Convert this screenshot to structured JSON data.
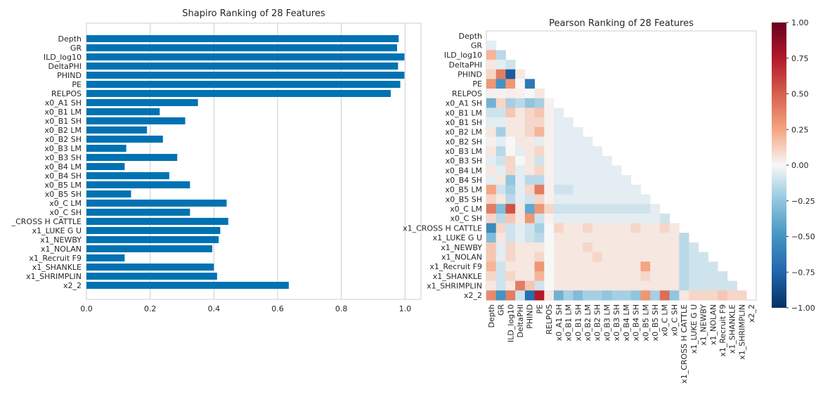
{
  "chart_data": [
    {
      "type": "bar",
      "orientation": "horizontal",
      "title": "Shapiro Ranking of 28 Features",
      "categories": [
        "Depth",
        "GR",
        "ILD_log10",
        "DeltaPHI",
        "PHIND",
        "PE",
        "RELPOS",
        "x0_A1 SH",
        "x0_B1 LM",
        "x0_B1 SH",
        "x0_B2 LM",
        "x0_B2 SH",
        "x0_B3 LM",
        "x0_B3 SH",
        "x0_B4 LM",
        "x0_B4 SH",
        "x0_B5 LM",
        "x0_B5 SH",
        "x0_C LM",
        "x0_C SH",
        "x1_CROSS H CATTLE",
        "x1_LUKE G U",
        "x1_NEWBY",
        "x1_NOLAN",
        "x1_Recruit F9",
        "x1_SHANKLE",
        "x1_SHRIMPLIN",
        "x2_2"
      ],
      "category_labels_shown": [
        "Depth",
        "GR",
        "ILD_log10",
        "DeltaPHI",
        "PHIND",
        "PE",
        "RELPOS",
        "x0_A1 SH",
        "x0_B1 LM",
        "x0_B1 SH",
        "x0_B2 LM",
        "x0_B2 SH",
        "x0_B3 LM",
        "x0_B3 SH",
        "x0_B4 LM",
        "x0_B4 SH",
        "x0_B5 LM",
        "x0_B5 SH",
        "x0_C LM",
        "x0_C SH",
        "_CROSS H CATTLE",
        "x1_LUKE G U",
        "x1_NEWBY",
        "x1_NOLAN",
        "x1_Recruit F9",
        "x1_SHANKLE",
        "x1_SHRIMPLIN",
        "x2_2"
      ],
      "values": [
        0.98,
        0.975,
        0.998,
        0.978,
        0.998,
        0.985,
        0.955,
        0.35,
        0.23,
        0.31,
        0.19,
        0.24,
        0.125,
        0.285,
        0.12,
        0.26,
        0.325,
        0.14,
        0.44,
        0.325,
        0.445,
        0.42,
        0.415,
        0.395,
        0.12,
        0.4,
        0.41,
        0.635
      ],
      "xlim": [
        0,
        1.05
      ],
      "xticks": [
        "0.0",
        "0.2",
        "0.4",
        "0.6",
        "0.8",
        "1.0"
      ],
      "bar_color": "#0072b2",
      "grid": true
    },
    {
      "type": "heatmap",
      "title": "Pearson Ranking of 28 Features",
      "features": [
        "Depth",
        "GR",
        "ILD_log10",
        "DeltaPHI",
        "PHIND",
        "PE",
        "RELPOS",
        "x0_A1 SH",
        "x0_B1 LM",
        "x0_B1 SH",
        "x0_B2 LM",
        "x0_B2 SH",
        "x0_B3 LM",
        "x0_B3 SH",
        "x0_B4 LM",
        "x0_B4 SH",
        "x0_B5 LM",
        "x0_B5 SH",
        "x0_C LM",
        "x0_C SH",
        "x1_CROSS H CATTLE",
        "x1_LUKE G U",
        "x1_NEWBY",
        "x1_NOLAN",
        "x1_Recruit F9",
        "x1_SHANKLE",
        "x1_SHRIMPLIN",
        "x2_2"
      ],
      "lower_triangle": true,
      "colormap": "RdBu_r",
      "vmin": -1.0,
      "vmax": 1.0,
      "colorbar_ticks": [
        "1.00",
        "0.75",
        "0.50",
        "0.25",
        "0.00",
        "−0.25",
        "−0.50",
        "−0.75",
        "−1.00"
      ],
      "matrix_rows": [
        [],
        [
          -0.05
        ],
        [
          0.2,
          -0.15
        ],
        [
          0.05,
          -0.05,
          -0.1
        ],
        [
          0.1,
          0.4,
          -0.8,
          0.05
        ],
        [
          0.3,
          -0.5,
          0.3,
          0.0,
          -0.65
        ],
        [
          0.02,
          0.02,
          0.03,
          0.02,
          0.0,
          0.05
        ],
        [
          -0.35,
          0.1,
          -0.2,
          -0.15,
          -0.25,
          -0.2,
          0.02
        ],
        [
          -0.1,
          -0.1,
          0.15,
          0.05,
          0.1,
          0.15,
          0.02,
          -0.05
        ],
        [
          -0.05,
          -0.05,
          0.05,
          0.05,
          0.1,
          0.1,
          0.02,
          -0.05,
          -0.05
        ],
        [
          0.05,
          -0.2,
          0.05,
          0.05,
          0.1,
          0.2,
          0.02,
          -0.05,
          -0.05,
          -0.05
        ],
        [
          0.02,
          -0.05,
          0.0,
          0.05,
          0.05,
          -0.05,
          0.02,
          -0.05,
          -0.05,
          -0.05,
          -0.05
        ],
        [
          0.05,
          -0.15,
          0.0,
          -0.05,
          0.05,
          0.1,
          0.02,
          -0.05,
          -0.05,
          -0.05,
          -0.05,
          -0.05
        ],
        [
          -0.05,
          -0.1,
          0.1,
          0.0,
          0.05,
          -0.1,
          0.02,
          -0.05,
          -0.05,
          -0.05,
          -0.05,
          -0.05,
          -0.05
        ],
        [
          0.05,
          -0.05,
          0.1,
          -0.05,
          0.05,
          0.1,
          0.02,
          -0.05,
          -0.05,
          -0.05,
          -0.05,
          -0.05,
          -0.05,
          -0.05
        ],
        [
          -0.05,
          0.05,
          -0.25,
          -0.05,
          -0.15,
          -0.15,
          0.02,
          -0.05,
          -0.05,
          -0.05,
          -0.05,
          -0.05,
          -0.05,
          -0.05,
          -0.05
        ],
        [
          0.25,
          -0.1,
          -0.2,
          -0.05,
          0.1,
          0.4,
          0.02,
          -0.1,
          -0.1,
          -0.05,
          -0.05,
          -0.05,
          -0.05,
          -0.05,
          -0.05,
          -0.05
        ],
        [
          0.1,
          0.05,
          -0.15,
          -0.05,
          -0.1,
          0.1,
          0.02,
          -0.05,
          -0.05,
          -0.05,
          -0.05,
          -0.05,
          -0.05,
          -0.05,
          -0.05,
          -0.05,
          -0.05
        ],
        [
          0.4,
          -0.3,
          0.55,
          0.05,
          -0.4,
          0.3,
          0.1,
          -0.1,
          -0.1,
          -0.1,
          -0.1,
          -0.1,
          -0.1,
          -0.1,
          -0.1,
          -0.1,
          -0.1,
          -0.05
        ],
        [
          0.1,
          -0.15,
          0.15,
          0.05,
          0.3,
          -0.1,
          0.02,
          -0.05,
          -0.05,
          -0.05,
          -0.05,
          -0.05,
          -0.05,
          -0.05,
          -0.05,
          -0.05,
          -0.05,
          -0.05,
          -0.1
        ],
        [
          -0.55,
          0.1,
          -0.1,
          -0.05,
          -0.1,
          -0.2,
          0.0,
          0.1,
          0.05,
          0.05,
          0.1,
          0.05,
          0.05,
          0.05,
          0.05,
          0.1,
          0.05,
          0.05,
          0.1,
          0.05
        ],
        [
          -0.3,
          0.05,
          -0.1,
          -0.05,
          -0.1,
          -0.15,
          0.0,
          0.05,
          0.05,
          0.05,
          0.05,
          0.05,
          0.05,
          0.05,
          0.05,
          0.05,
          0.05,
          0.05,
          0.05,
          0.05,
          -0.15
        ],
        [
          0.15,
          -0.05,
          0.1,
          0.05,
          0.05,
          0.05,
          0.0,
          0.05,
          0.05,
          0.05,
          0.1,
          0.05,
          0.05,
          0.05,
          0.05,
          0.05,
          0.05,
          0.05,
          0.05,
          0.05,
          -0.15,
          -0.1
        ],
        [
          0.15,
          -0.05,
          0.1,
          0.05,
          0.05,
          0.1,
          0.0,
          0.05,
          0.05,
          0.05,
          0.05,
          0.1,
          0.05,
          0.05,
          0.05,
          0.05,
          0.05,
          0.05,
          0.05,
          0.05,
          -0.15,
          -0.1,
          -0.1
        ],
        [
          0.2,
          -0.1,
          0.05,
          0.05,
          0.05,
          0.3,
          0.0,
          0.05,
          0.05,
          0.05,
          0.05,
          0.05,
          0.05,
          0.05,
          0.05,
          0.05,
          0.25,
          0.05,
          0.05,
          0.05,
          -0.15,
          -0.1,
          -0.1,
          -0.1
        ],
        [
          0.1,
          -0.1,
          0.1,
          0.05,
          0.05,
          0.2,
          0.0,
          0.05,
          0.05,
          0.05,
          0.05,
          0.05,
          0.05,
          0.05,
          0.05,
          0.05,
          0.1,
          0.05,
          0.05,
          0.05,
          -0.15,
          -0.1,
          -0.1,
          -0.1,
          -0.1
        ],
        [
          0.05,
          -0.1,
          0.05,
          0.4,
          0.15,
          -0.1,
          0.0,
          0.05,
          0.05,
          0.05,
          0.05,
          0.05,
          0.05,
          0.05,
          0.05,
          0.05,
          0.05,
          0.05,
          0.05,
          0.05,
          -0.15,
          -0.1,
          -0.1,
          -0.1,
          -0.1,
          -0.1
        ],
        [
          0.35,
          -0.5,
          0.4,
          -0.1,
          -0.7,
          0.75,
          0.05,
          -0.35,
          -0.2,
          -0.3,
          -0.2,
          -0.2,
          -0.25,
          -0.2,
          -0.2,
          -0.25,
          0.3,
          -0.2,
          0.45,
          -0.25,
          0.05,
          0.1,
          0.1,
          0.1,
          0.15,
          0.1,
          0.1
        ]
      ]
    }
  ]
}
